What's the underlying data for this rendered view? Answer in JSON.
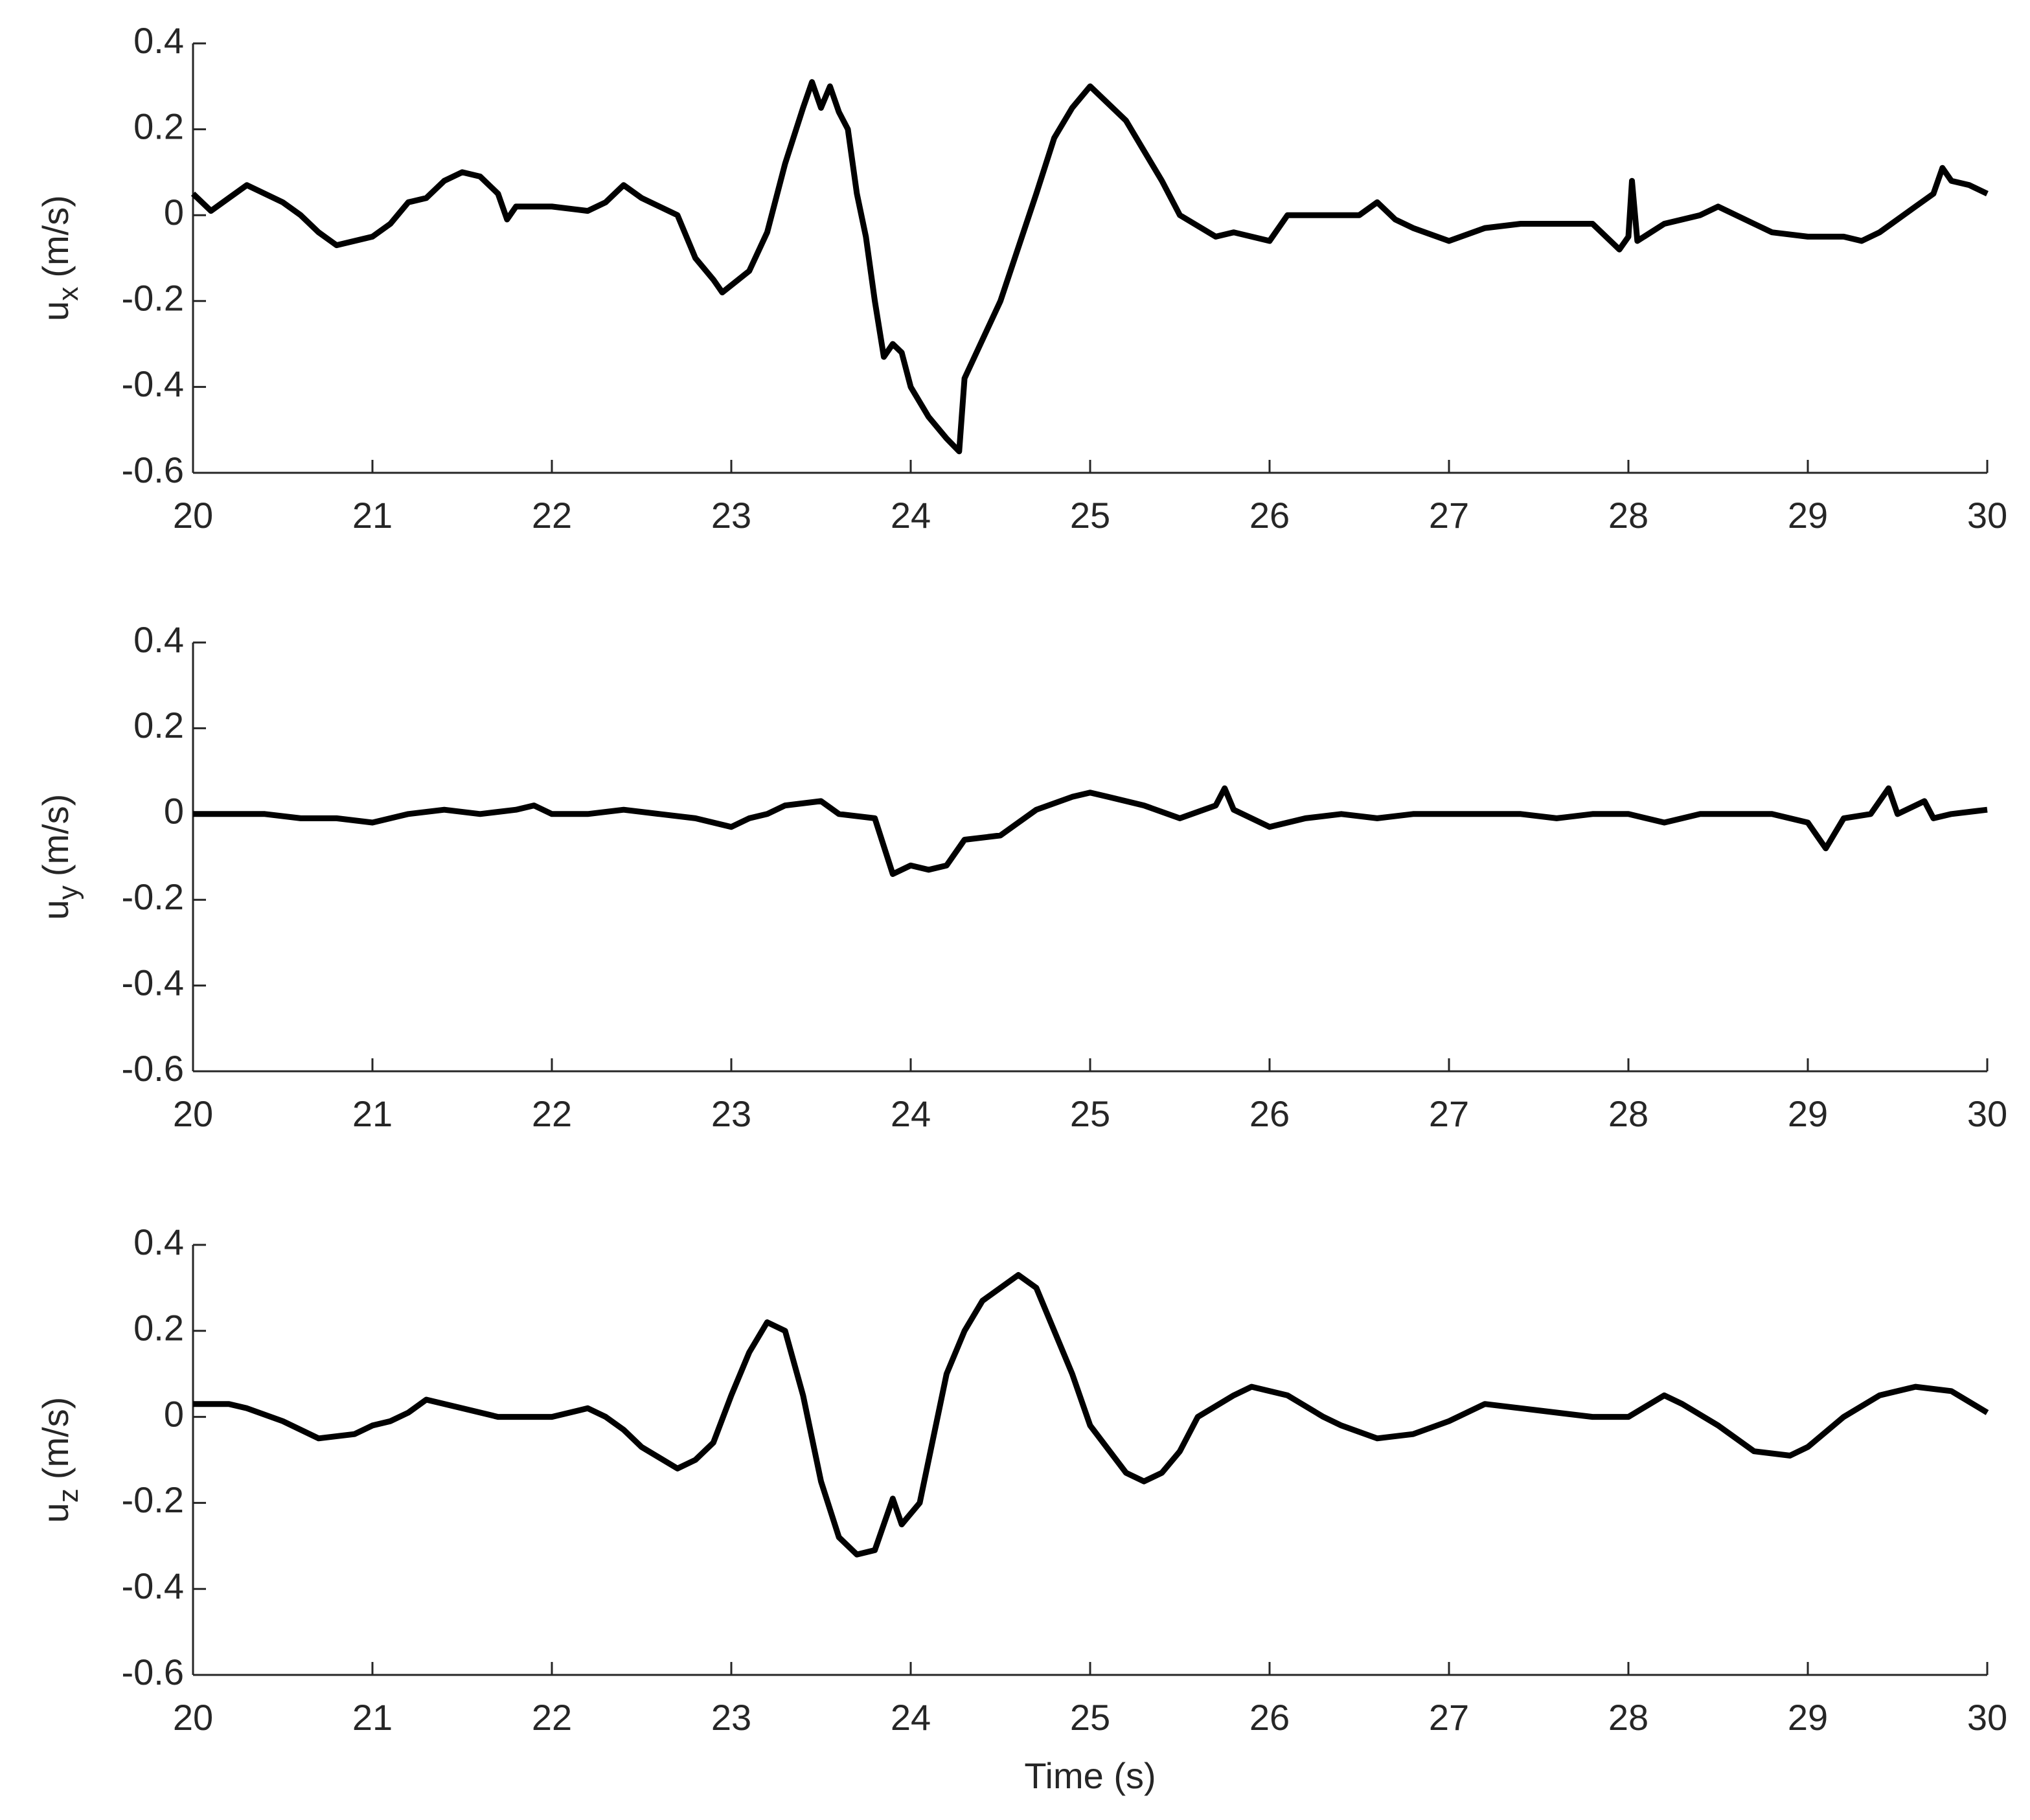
{
  "chart_data": [
    {
      "type": "line",
      "ylabel": {
        "text": "u",
        "subscript": "x",
        "suffix": "(m/s)"
      },
      "xlim": [
        20,
        30
      ],
      "xticks": [
        20,
        21,
        22,
        23,
        24,
        25,
        26,
        27,
        28,
        29,
        30
      ],
      "ylim": [
        -0.6,
        0.4
      ],
      "yticks": [
        -0.6,
        -0.4,
        -0.2,
        0,
        0.2,
        0.4
      ],
      "x": [
        20.0,
        20.1,
        20.2,
        20.3,
        20.4,
        20.5,
        20.6,
        20.7,
        20.8,
        20.9,
        21.0,
        21.1,
        21.2,
        21.3,
        21.4,
        21.5,
        21.6,
        21.7,
        21.75,
        21.8,
        22.0,
        22.2,
        22.3,
        22.4,
        22.5,
        22.7,
        22.8,
        22.9,
        22.95,
        23.1,
        23.2,
        23.3,
        23.4,
        23.45,
        23.5,
        23.55,
        23.6,
        23.65,
        23.7,
        23.75,
        23.8,
        23.85,
        23.9,
        23.95,
        24.0,
        24.1,
        24.2,
        24.27,
        24.3,
        24.5,
        24.7,
        24.8,
        24.9,
        25.0,
        25.1,
        25.2,
        25.3,
        25.4,
        25.5,
        25.7,
        25.8,
        26.0,
        26.1,
        26.3,
        26.5,
        26.6,
        26.7,
        26.8,
        27.0,
        27.2,
        27.4,
        27.6,
        27.8,
        27.95,
        28.0,
        28.02,
        28.05,
        28.2,
        28.4,
        28.5,
        28.7,
        28.8,
        29.0,
        29.2,
        29.3,
        29.4,
        29.6,
        29.7,
        29.75,
        29.8,
        29.9,
        30.0
      ],
      "series": [
        {
          "color": "#000000",
          "values": [
            0.05,
            0.01,
            0.04,
            0.07,
            0.05,
            0.03,
            0.0,
            -0.04,
            -0.07,
            -0.06,
            -0.05,
            -0.02,
            0.03,
            0.04,
            0.08,
            0.1,
            0.09,
            0.05,
            -0.01,
            0.02,
            0.02,
            0.01,
            0.03,
            0.07,
            0.04,
            0.0,
            -0.1,
            -0.15,
            -0.18,
            -0.13,
            -0.04,
            0.12,
            0.25,
            0.31,
            0.25,
            0.3,
            0.24,
            0.2,
            0.05,
            -0.05,
            -0.2,
            -0.33,
            -0.3,
            -0.32,
            -0.4,
            -0.47,
            -0.52,
            -0.55,
            -0.38,
            -0.2,
            0.05,
            0.18,
            0.25,
            0.3,
            0.26,
            0.22,
            0.15,
            0.08,
            0.0,
            -0.05,
            -0.04,
            -0.06,
            0.0,
            0.0,
            0.0,
            0.03,
            -0.01,
            -0.03,
            -0.06,
            -0.03,
            -0.02,
            -0.02,
            -0.02,
            -0.08,
            -0.05,
            0.08,
            -0.06,
            -0.02,
            0.0,
            0.02,
            -0.02,
            -0.04,
            -0.05,
            -0.05,
            -0.06,
            -0.04,
            0.02,
            0.05,
            0.11,
            0.08,
            0.07,
            0.05
          ]
        }
      ]
    },
    {
      "type": "line",
      "ylabel": {
        "text": "u",
        "subscript": "y",
        "suffix": "(m/s)"
      },
      "xlim": [
        20,
        30
      ],
      "xticks": [
        20,
        21,
        22,
        23,
        24,
        25,
        26,
        27,
        28,
        29,
        30
      ],
      "ylim": [
        -0.6,
        0.4
      ],
      "yticks": [
        -0.6,
        -0.4,
        -0.2,
        0,
        0.2,
        0.4
      ],
      "x": [
        20.0,
        20.2,
        20.4,
        20.6,
        20.8,
        21.0,
        21.2,
        21.4,
        21.6,
        21.8,
        21.9,
        22.0,
        22.2,
        22.4,
        22.6,
        22.8,
        23.0,
        23.1,
        23.2,
        23.3,
        23.5,
        23.6,
        23.8,
        23.9,
        24.0,
        24.1,
        24.2,
        24.3,
        24.5,
        24.6,
        24.7,
        24.9,
        25.0,
        25.1,
        25.3,
        25.5,
        25.7,
        25.75,
        25.8,
        26.0,
        26.2,
        26.4,
        26.6,
        26.8,
        27.0,
        27.4,
        27.6,
        27.8,
        28.0,
        28.2,
        28.4,
        28.6,
        28.8,
        29.0,
        29.1,
        29.2,
        29.35,
        29.45,
        29.5,
        29.65,
        29.7,
        29.8,
        30.0
      ],
      "series": [
        {
          "color": "#000000",
          "values": [
            0.0,
            0.0,
            0.0,
            -0.01,
            -0.01,
            -0.02,
            0.0,
            0.01,
            0.0,
            0.01,
            0.02,
            0.0,
            0.0,
            0.01,
            0.0,
            -0.01,
            -0.03,
            -0.01,
            0.0,
            0.02,
            0.03,
            0.0,
            -0.01,
            -0.14,
            -0.12,
            -0.13,
            -0.12,
            -0.06,
            -0.05,
            -0.02,
            0.01,
            0.04,
            0.05,
            0.04,
            0.02,
            -0.01,
            0.02,
            0.06,
            0.01,
            -0.03,
            -0.01,
            0.0,
            -0.01,
            0.0,
            0.0,
            0.0,
            -0.01,
            0.0,
            0.0,
            -0.02,
            0.0,
            0.0,
            0.0,
            -0.02,
            -0.08,
            -0.01,
            0.0,
            0.06,
            0.0,
            0.03,
            -0.01,
            0.0,
            0.01
          ]
        }
      ]
    },
    {
      "type": "line",
      "ylabel": {
        "text": "u",
        "subscript": "z",
        "suffix": "(m/s)"
      },
      "xlabel": "Time (s)",
      "xlim": [
        20,
        30
      ],
      "xticks": [
        20,
        21,
        22,
        23,
        24,
        25,
        26,
        27,
        28,
        29,
        30
      ],
      "ylim": [
        -0.6,
        0.4
      ],
      "yticks": [
        -0.6,
        -0.4,
        -0.2,
        0,
        0.2,
        0.4
      ],
      "x": [
        20.0,
        20.2,
        20.3,
        20.5,
        20.7,
        20.9,
        21.0,
        21.1,
        21.2,
        21.3,
        21.5,
        21.7,
        22.0,
        22.2,
        22.3,
        22.4,
        22.5,
        22.7,
        22.8,
        22.9,
        23.0,
        23.1,
        23.2,
        23.3,
        23.4,
        23.5,
        23.6,
        23.7,
        23.8,
        23.9,
        23.95,
        24.05,
        24.2,
        24.3,
        24.4,
        24.6,
        24.7,
        24.9,
        25.0,
        25.2,
        25.3,
        25.4,
        25.5,
        25.6,
        25.8,
        25.9,
        26.1,
        26.3,
        26.4,
        26.6,
        26.8,
        27.0,
        27.2,
        27.4,
        27.6,
        27.8,
        28.0,
        28.2,
        28.3,
        28.5,
        28.7,
        28.9,
        29.0,
        29.2,
        29.4,
        29.6,
        29.8,
        30.0
      ],
      "series": [
        {
          "color": "#000000",
          "values": [
            0.03,
            0.03,
            0.02,
            -0.01,
            -0.05,
            -0.04,
            -0.02,
            -0.01,
            0.01,
            0.04,
            0.02,
            0.0,
            0.0,
            0.02,
            0.0,
            -0.03,
            -0.07,
            -0.12,
            -0.1,
            -0.06,
            0.05,
            0.15,
            0.22,
            0.2,
            0.05,
            -0.15,
            -0.28,
            -0.32,
            -0.31,
            -0.19,
            -0.25,
            -0.2,
            0.1,
            0.2,
            0.27,
            0.33,
            0.3,
            0.1,
            -0.02,
            -0.13,
            -0.15,
            -0.13,
            -0.08,
            0.0,
            0.05,
            0.07,
            0.05,
            0.0,
            -0.02,
            -0.05,
            -0.04,
            -0.01,
            0.03,
            0.02,
            0.01,
            0.0,
            0.0,
            0.05,
            0.03,
            -0.02,
            -0.08,
            -0.09,
            -0.07,
            0.0,
            0.05,
            0.07,
            0.06,
            0.01
          ]
        }
      ]
    }
  ]
}
